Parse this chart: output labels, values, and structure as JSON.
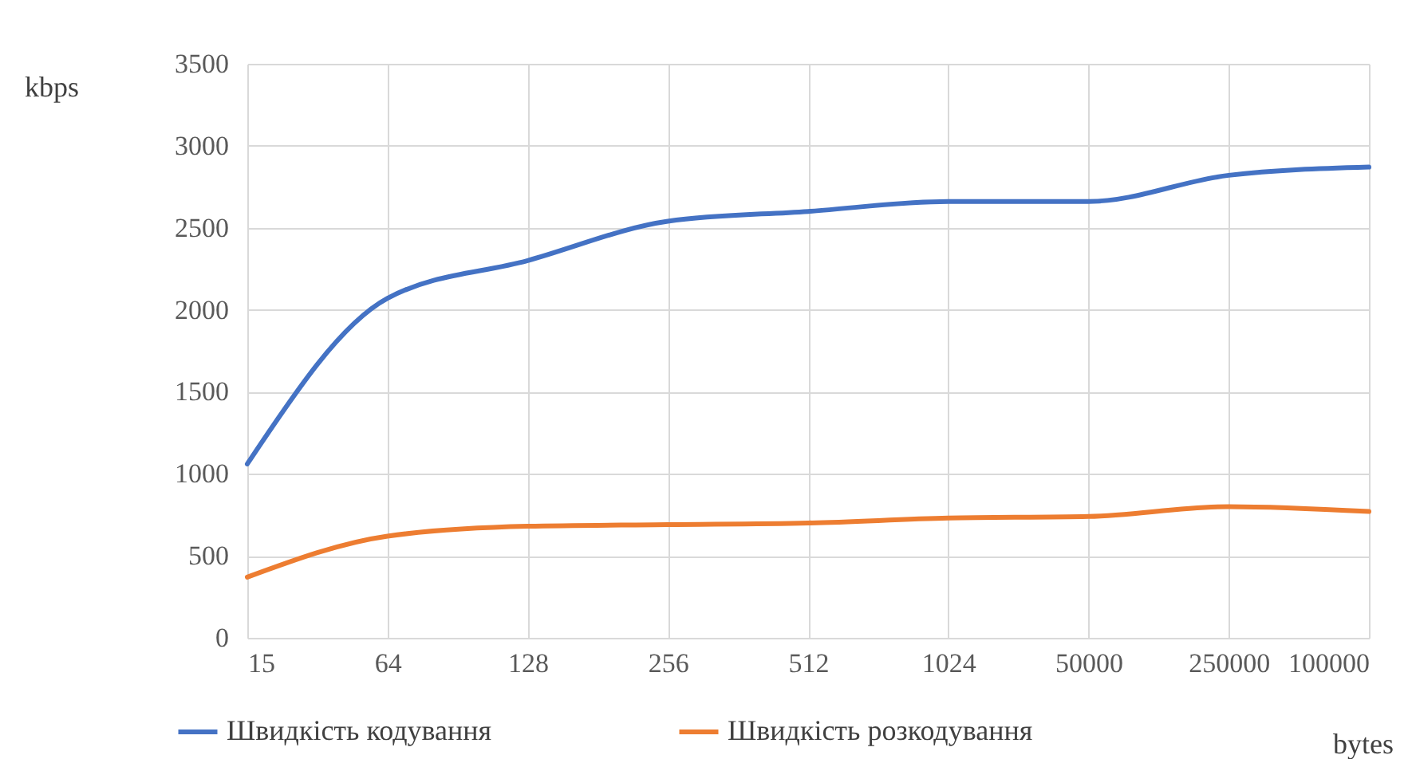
{
  "chart_data": {
    "type": "line",
    "xlabel": "bytes",
    "ylabel": "kbps",
    "categories": [
      "15",
      "64",
      "128",
      "256",
      "512",
      "1024",
      "50000",
      "250000",
      "100000"
    ],
    "series": [
      {
        "name": "Швидкість кодування",
        "color": "#4472c4",
        "values": [
          1060,
          2070,
          2300,
          2540,
          2600,
          2660,
          2660,
          2820,
          2870
        ]
      },
      {
        "name": "Швидкість розкодування",
        "color": "#ed7d31",
        "values": [
          370,
          620,
          680,
          690,
          700,
          730,
          740,
          800,
          770
        ]
      }
    ],
    "ylim": [
      0,
      3500
    ],
    "yticks": [
      0,
      500,
      1000,
      1500,
      2000,
      2500,
      3000,
      3500
    ],
    "grid": true,
    "legend": "bottom",
    "marker": "none",
    "line_style": "solid"
  }
}
